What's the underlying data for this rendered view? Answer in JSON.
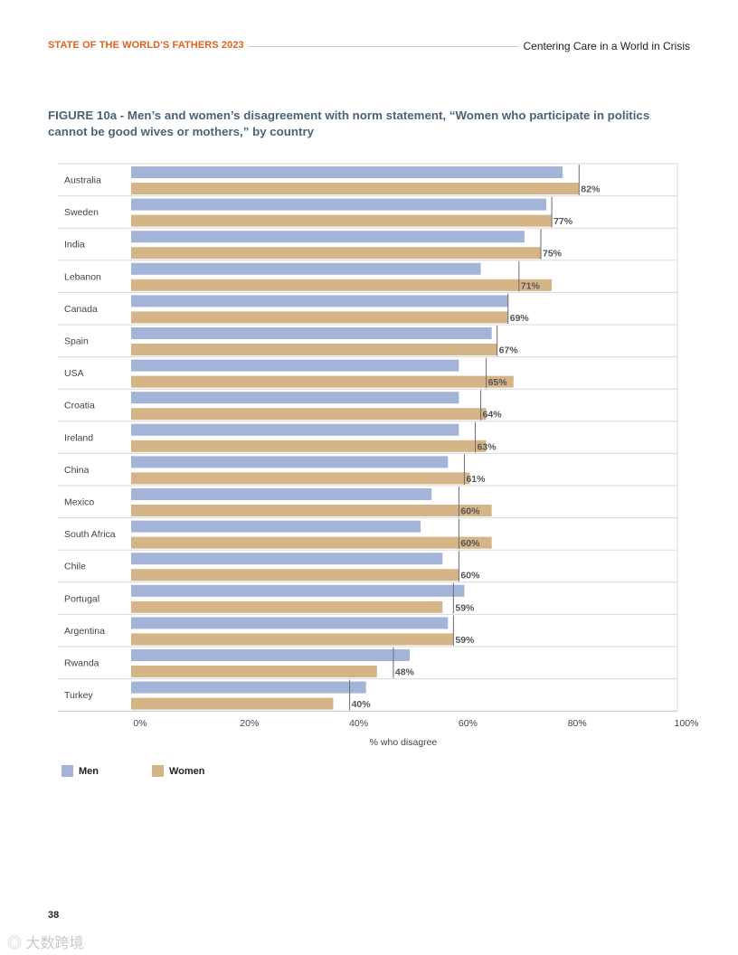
{
  "header": {
    "left": "STATE OF THE WORLD'S FATHERS 2023",
    "right": "Centering Care in a World in Crisis"
  },
  "colors": {
    "men": "#a4b4d8",
    "women": "#d5b488",
    "accent": "#e2611f",
    "title": "#4d6277"
  },
  "figure_title": "FIGURE 10a - Men’s and women’s disagreement with norm statement, “Women who participate in politics cannot be good wives or mothers,” by country",
  "chart_data": {
    "type": "bar",
    "orientation": "horizontal",
    "title": "Men’s and women’s disagreement with norm statement, “Women who participate in politics cannot be good wives or mothers,” by country",
    "xlabel": "% who disagree",
    "ylabel": "",
    "xlim": [
      0,
      100
    ],
    "xticks": [
      0,
      20,
      40,
      60,
      80,
      100
    ],
    "xtick_labels": [
      "0%",
      "20%",
      "40%",
      "60%",
      "80%",
      "100%"
    ],
    "categories": [
      "Australia",
      "Sweden",
      "India",
      "Lebanon",
      "Canada",
      "Spain",
      "USA",
      "Croatia",
      "Ireland",
      "China",
      "Mexico",
      "South Africa",
      "Chile",
      "Portugal",
      "Argentina",
      "Rwanda",
      "Turkey"
    ],
    "series": [
      {
        "name": "Men",
        "values": [
          79,
          76,
          72,
          64,
          69,
          66,
          60,
          60,
          60,
          58,
          55,
          53,
          57,
          61,
          58,
          51,
          43
        ]
      },
      {
        "name": "Women",
        "values": [
          82,
          77,
          75,
          77,
          69,
          67,
          70,
          65,
          65,
          62,
          66,
          66,
          60,
          57,
          59,
          45,
          37
        ]
      }
    ],
    "average_labels": [
      "82%",
      "77%",
      "75%",
      "71%",
      "69%",
      "67%",
      "65%",
      "64%",
      "63%",
      "61%",
      "60%",
      "60%",
      "60%",
      "59%",
      "59%",
      "48%",
      "40%"
    ],
    "average_values": [
      82,
      77,
      75,
      71,
      69,
      67,
      65,
      64,
      63,
      61,
      60,
      60,
      60,
      59,
      59,
      48,
      40
    ],
    "legend": [
      "Men",
      "Women"
    ],
    "legend_position": "bottom-left"
  },
  "legend": {
    "men": "Men",
    "women": "Women"
  },
  "page_number": "38",
  "watermark": "大数跨境"
}
